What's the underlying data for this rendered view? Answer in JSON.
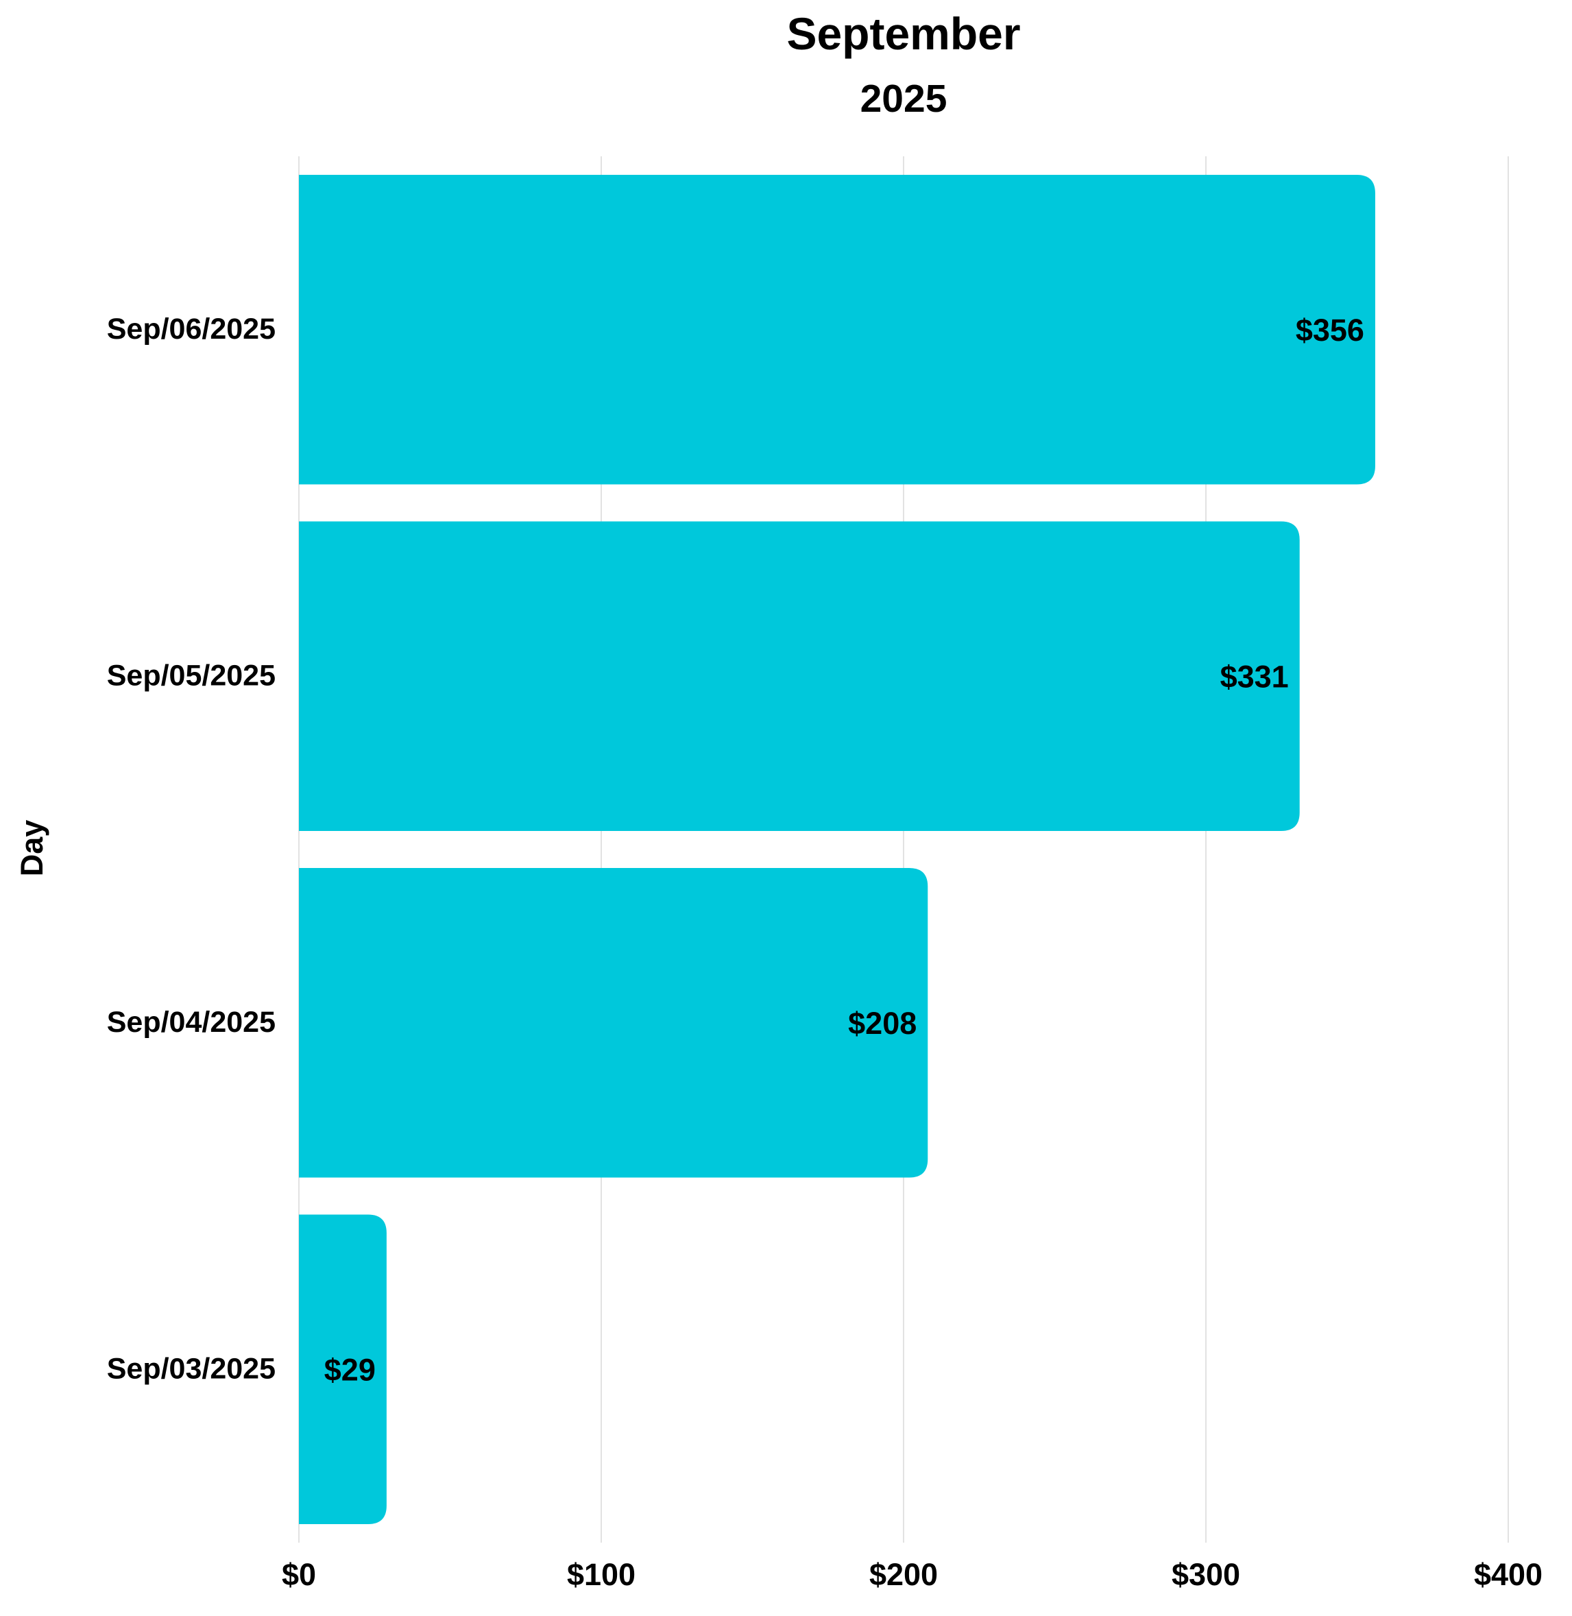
{
  "chart_data": {
    "type": "bar",
    "orientation": "horizontal",
    "title": "September",
    "subtitle": "2025",
    "ylabel": "Day",
    "xlabel": "",
    "categories": [
      "Sep/06/2025",
      "Sep/05/2025",
      "Sep/04/2025",
      "Sep/03/2025"
    ],
    "values": [
      356,
      331,
      208,
      29
    ],
    "value_labels": [
      "$356",
      "$331",
      "$208",
      "$29"
    ],
    "xlim": [
      0,
      400
    ],
    "x_ticks": [
      0,
      100,
      200,
      300,
      400
    ],
    "x_tick_labels": [
      "$0",
      "$100",
      "$200",
      "$300",
      "$400"
    ],
    "grid": "vertical",
    "legend": "none",
    "colors": {
      "bar": "#00c8db",
      "grid": "#e2e2e2",
      "text": "#000000"
    }
  }
}
